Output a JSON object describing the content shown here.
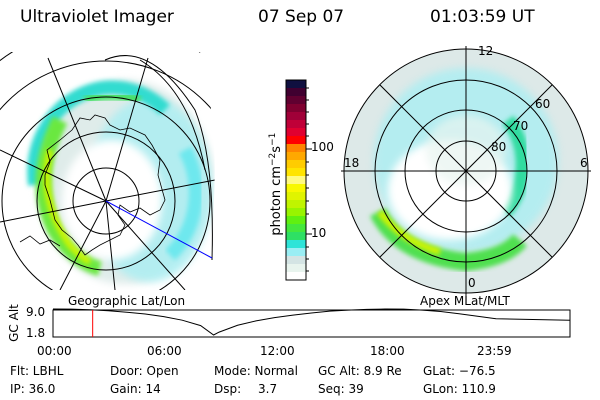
{
  "header": {
    "instrument": "Ultraviolet Imager",
    "date": "07 Sep 07",
    "time": "01:03:59 UT"
  },
  "colorbar": {
    "label": "photon cm",
    "exp1": "−2",
    "unit2": "s",
    "exp2": "−1",
    "ticks": [
      "100",
      "10"
    ],
    "scale": "log",
    "colors": [
      "#ffffff",
      "#e8f4ee",
      "#d4e4e4",
      "#9aeef4",
      "#2ee4d8",
      "#2ee064",
      "#44e83c",
      "#60f010",
      "#98f400",
      "#c0f400",
      "#e0f400",
      "#f8f800",
      "#fffa80",
      "#ffe400",
      "#ffcc00",
      "#ffa800",
      "#ff8400",
      "#ff0000",
      "#e00030",
      "#c00038",
      "#a00038",
      "#800030",
      "#600030",
      "#400030",
      "#101040"
    ]
  },
  "left_map": {
    "projection": "Geographic Lat/Lon"
  },
  "right_map": {
    "projection": "Apex MLat/MLT",
    "mlt_labels": [
      "12",
      "18",
      "6",
      "0"
    ],
    "lat_labels": [
      "80",
      "70",
      "60"
    ]
  },
  "chart_data": {
    "type": "line",
    "ylabel": "GC Alt",
    "yticks": [
      "9.0",
      "1.8"
    ],
    "ylim": [
      1.8,
      9.0
    ],
    "xticks": [
      "00:00",
      "06:00",
      "12:00",
      "18:00",
      "23:59"
    ],
    "x_hours": [
      0,
      1,
      2,
      3,
      4,
      5,
      6,
      7,
      8,
      8.7,
      9,
      10,
      11,
      12,
      13,
      14,
      15,
      16,
      17,
      18,
      19,
      20,
      21,
      22,
      23,
      24
    ],
    "values": [
      9.0,
      8.95,
      8.8,
      8.5,
      8.1,
      7.6,
      6.9,
      5.9,
      4.4,
      1.8,
      2.6,
      4.5,
      5.7,
      6.6,
      7.3,
      7.9,
      8.4,
      8.7,
      8.9,
      9.0,
      8.95,
      8.7,
      8.3,
      7.7,
      7.0,
      6.3
    ],
    "current_time_hours": 1.066,
    "current_marker_color": "#ff0000"
  },
  "status": {
    "filter": "Flt: LBHL",
    "ip": "IP: 36.0",
    "door": "Door: Open",
    "gain": "Gain: 14",
    "mode": "Mode: Normal",
    "dsp_label": "Dsp:",
    "dsp_value": "3.7",
    "gc_alt": "GC Alt: 8.9 Re",
    "seq": "Seq: 39",
    "glat": "GLat: −76.5",
    "glon": "GLon: 110.9"
  }
}
